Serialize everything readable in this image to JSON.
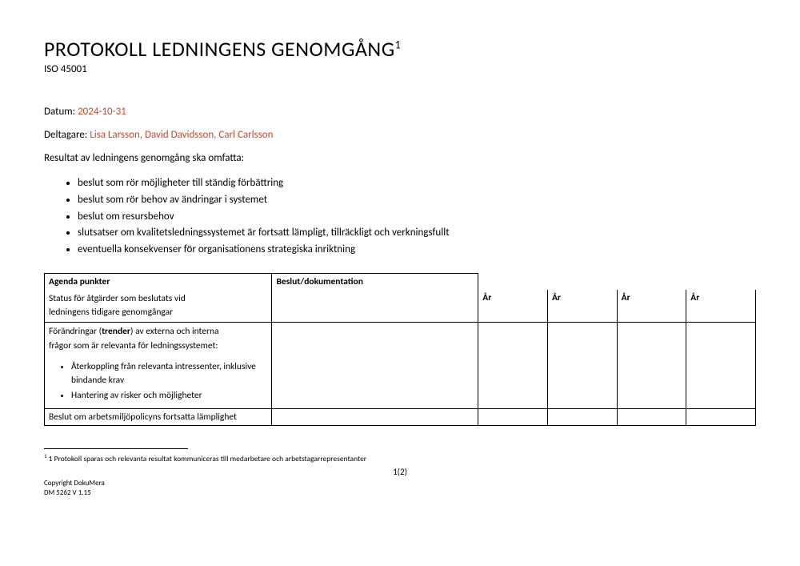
{
  "header": {
    "title": "PROTOKOLL LEDNINGENS GENOMGÅNG",
    "title_sup": "1",
    "subtitle": "ISO 45001"
  },
  "fields": {
    "date_label": "Datum: ",
    "date_value": "2024-10-31",
    "participants_label": "Deltagare: ",
    "participants_value": "Lisa Larsson, David Davidsson, Carl Carlsson"
  },
  "intro": "Resultat av ledningens genomgång ska omfatta:",
  "result_items": [
    "beslut som rör möjligheter till ständig förbättring",
    "beslut som rör behov av ändringar i systemet",
    "beslut om resursbehov",
    "slutsatser om kvalitetsledningssystemet är fortsatt lämpligt, tillräckligt och verkningsfullt",
    "eventuella konsekvenser för organisationens strategiska inriktning"
  ],
  "table": {
    "headers": {
      "agenda": "Agenda punkter",
      "beslut": "Beslut/dokumentation",
      "year": "År"
    },
    "rows": {
      "row1_line1": "Status för åtgärder som beslutats vid",
      "row1_line2": "ledningens tidigare genomgångar",
      "row2_line1_pre": "Förändringar (",
      "row2_line1_bold": "trender",
      "row2_line1_post": ") av externa och interna",
      "row2_line2": "frågor som är relevanta för ledningssystemet:",
      "row2_sub1_line1": "Återkoppling från relevanta intressenter, inklusive",
      "row2_sub1_line2": "bindande krav",
      "row2_sub2": "Hantering av risker och möjligheter",
      "row3": "Beslut om arbetsmiljöpolicyns fortsatta lämplighet"
    }
  },
  "footnote": {
    "sup": "1",
    "text": " 1 Protokoll sparas och relevanta resultat kommuniceras till medarbetare och arbetstagarrepresentanter"
  },
  "page_number": "1(2)",
  "copyright": {
    "line1": "Copyright DokuMera",
    "line2": "DM 5262 V 1.15"
  },
  "colors": {
    "accent": "#d04a2e",
    "text": "#000000",
    "background": "#ffffff"
  }
}
